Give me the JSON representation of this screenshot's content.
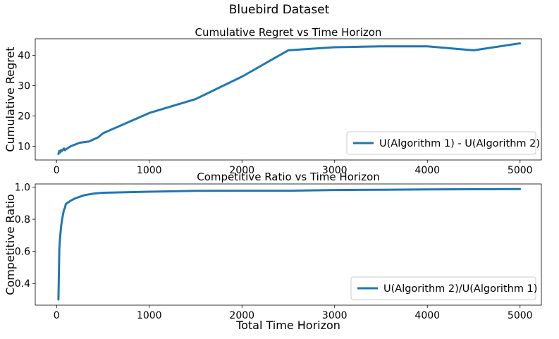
{
  "figure": {
    "title": "Bluebird Dataset"
  },
  "chart_data": [
    {
      "type": "line",
      "title": "Cumulative Regret vs Time Horizon",
      "xlabel": "",
      "ylabel": "Cumulative Regret",
      "xlim": [
        -230,
        5230
      ],
      "ylim": [
        5.5,
        45.5
      ],
      "xticks": [
        0,
        1000,
        2000,
        3000,
        4000,
        5000
      ],
      "yticks": [
        10,
        20,
        30,
        40
      ],
      "legend": "lower-right",
      "grid": false,
      "series": [
        {
          "name": "U(Algorithm 1) - U(Algorithm 2)",
          "color": "#1f77b4",
          "x": [
            20,
            30,
            40,
            50,
            60,
            70,
            80,
            90,
            100,
            150,
            250,
            350,
            450,
            500,
            1000,
            1500,
            2000,
            2500,
            3000,
            3500,
            4000,
            4500,
            5000
          ],
          "y": [
            7.5,
            8.5,
            8.0,
            8.8,
            8.5,
            9.0,
            9.3,
            8.7,
            9.0,
            10.0,
            11.2,
            11.6,
            13.0,
            14.3,
            21.0,
            25.6,
            33.0,
            41.7,
            42.7,
            43.0,
            43.0,
            41.7,
            44.0
          ]
        }
      ]
    },
    {
      "type": "line",
      "title": "Competitive Ratio vs Time Horizon",
      "xlabel": "Total Time Horizon",
      "ylabel": "Competitive  Ratio",
      "xlim": [
        -230,
        5230
      ],
      "ylim": [
        0.265,
        1.02
      ],
      "xticks": [
        0,
        1000,
        2000,
        3000,
        4000,
        5000
      ],
      "yticks": [
        0.4,
        0.6,
        0.8,
        1.0
      ],
      "yticklabels": [
        "0.4",
        "0.6",
        "0.8",
        "1.0"
      ],
      "legend": "lower-right",
      "grid": false,
      "series": [
        {
          "name": "U(Algorithm 2)/U(Algorithm 1)",
          "color": "#1f77b4",
          "x": [
            20,
            30,
            40,
            50,
            60,
            70,
            80,
            90,
            100,
            150,
            200,
            250,
            300,
            400,
            500,
            1000,
            1500,
            2000,
            2500,
            3000,
            3500,
            4000,
            4500,
            5000
          ],
          "y": [
            0.3,
            0.62,
            0.7,
            0.76,
            0.8,
            0.83,
            0.86,
            0.87,
            0.895,
            0.915,
            0.93,
            0.94,
            0.95,
            0.96,
            0.965,
            0.972,
            0.977,
            0.978,
            0.978,
            0.982,
            0.984,
            0.986,
            0.987,
            0.988
          ]
        }
      ]
    }
  ]
}
